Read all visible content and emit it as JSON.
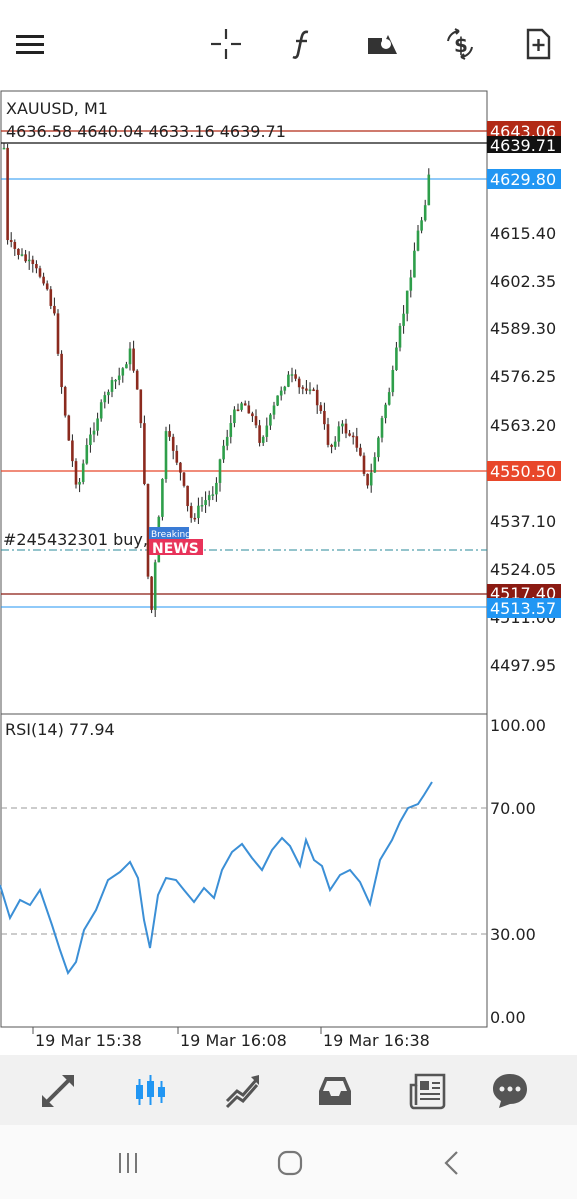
{
  "toolbar": {
    "icons": [
      "menu-icon",
      "crosshair-icon",
      "function-icon",
      "shapes-icon",
      "currency-exchange-icon",
      "new-document-icon"
    ]
  },
  "chart": {
    "symbol_label": "XAUUSD, M1",
    "ohlc_label": "4636.58 4640.04 4633.16 4639.71",
    "order_label": "#245432301 buy, 0.01",
    "news_badge_top": "Breaking",
    "news_badge_bottom": "NEWS",
    "price_axis_ticks": [
      "4615.40",
      "4602.35",
      "4589.30",
      "4576.25",
      "4563.20",
      "4537.10",
      "4524.05",
      "4511.00",
      "4497.95"
    ],
    "price_tags": [
      {
        "value": "4643.06",
        "color": "#b22a16"
      },
      {
        "value": "4639.71",
        "color": "#111111"
      },
      {
        "value": "4629.80",
        "color": "#2196f3"
      },
      {
        "value": "4550.50",
        "color": "#e8472a"
      },
      {
        "value": "4517.40",
        "color": "#8b1a12"
      },
      {
        "value": "4513.57",
        "color": "#2196f3"
      }
    ],
    "rsi_label": "RSI(14) 77.94",
    "rsi_axis_ticks": [
      "100.00",
      "70.00",
      "30.00",
      "0.00"
    ],
    "time_labels": [
      "19 Mar 15:38",
      "19 Mar 16:08",
      "19 Mar 16:38"
    ],
    "up_color": "#2e9e4a",
    "down_color": "#8b2a1e",
    "rsi_color": "#3b8fd6"
  },
  "bottom_nav": {
    "icons": [
      "quotes-icon",
      "chart-icon",
      "trade-icon",
      "history-icon",
      "news-icon",
      "chat-icon"
    ],
    "active": "chart-icon"
  },
  "system_nav": {
    "icons": [
      "recents-icon",
      "home-icon",
      "back-icon"
    ]
  }
}
